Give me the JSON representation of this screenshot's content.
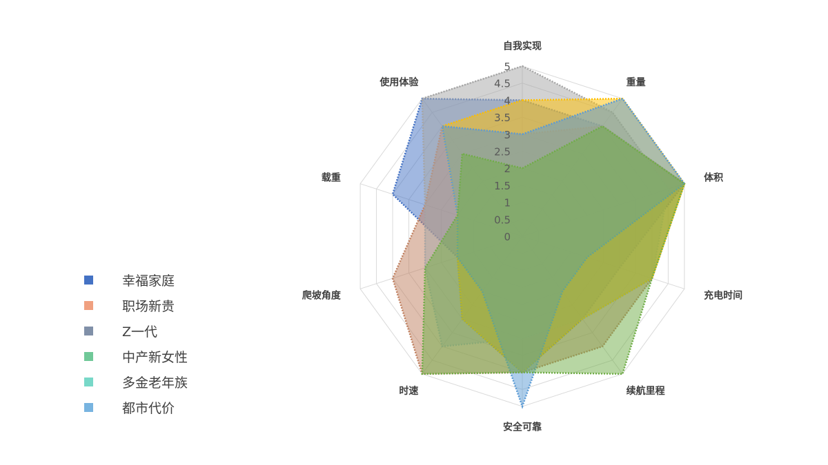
{
  "chart_data": {
    "type": "radar",
    "axes": [
      "自我实现",
      "重量",
      "体积",
      "充电时间",
      "续航里程",
      "安全可靠",
      "时速",
      "爬坡角度",
      "载重",
      "使用体验"
    ],
    "rlim": [
      0,
      5
    ],
    "ticks": [
      "0",
      "0.5",
      "1",
      "1.5",
      "2",
      "2.5",
      "3",
      "3.5",
      "4",
      "4.5",
      "5"
    ],
    "grid": true,
    "legend_position": "left",
    "series": [
      {
        "name": "幸福家庭",
        "color": "#4472C4",
        "legend_color": "#4472C4",
        "values": [
          4,
          4,
          5,
          3,
          3,
          4,
          3,
          2,
          4,
          5
        ]
      },
      {
        "name": "职场新贵",
        "color": "#C08060",
        "legend_color": "#F0A080",
        "values": [
          3,
          4,
          5,
          4,
          4,
          4,
          5,
          4,
          3,
          4
        ]
      },
      {
        "name": "Z一代",
        "color": "#A5A5A5",
        "legend_color": "#8090A8",
        "values": [
          5,
          4.5,
          4.5,
          4,
          3,
          3,
          4,
          3,
          3,
          5
        ]
      },
      {
        "name": "中产新女性",
        "color": "#FFC000",
        "legend_color": "#70C898",
        "values": [
          4,
          5,
          5,
          4,
          3,
          4,
          3,
          2,
          2,
          4
        ]
      },
      {
        "name": "多金老年族",
        "color": "#5B9BD5",
        "legend_color": "#78D8C8",
        "values": [
          3,
          5,
          5,
          2,
          2,
          5,
          2,
          2,
          2,
          4
        ]
      },
      {
        "name": "都市代价",
        "color": "#70AD47",
        "legend_color": "#78B4E0",
        "values": [
          2,
          4,
          5,
          4,
          5,
          4,
          5,
          3,
          2,
          3
        ]
      }
    ]
  }
}
